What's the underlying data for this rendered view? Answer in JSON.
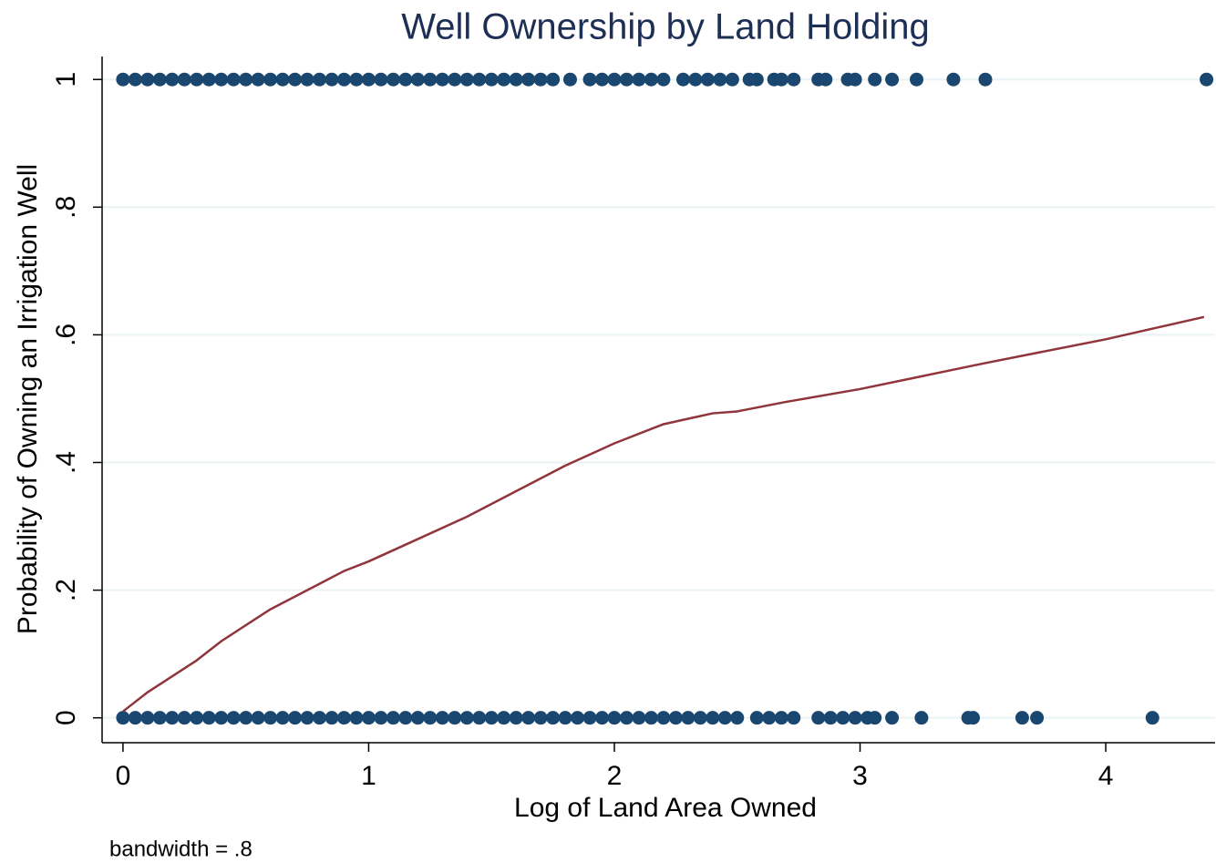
{
  "chart_data": {
    "type": "scatter",
    "title": "Well Ownership by Land Holding",
    "xlabel": "Log of Land Area Owned",
    "ylabel": "Probability of Owning an Irrigation Well",
    "note": "bandwidth = .8",
    "xlim": [
      -0.085,
      4.445
    ],
    "ylim": [
      -0.039,
      1.036
    ],
    "xticks": [
      0,
      1,
      2,
      3,
      4
    ],
    "yticks": [
      0,
      {
        "value": 0.2,
        "label": ".2"
      },
      {
        "value": 0.4,
        "label": ".4"
      },
      {
        "value": 0.6,
        "label": ".6"
      },
      {
        "value": 0.8,
        "label": ".8"
      },
      1
    ],
    "grid": true,
    "series": [
      {
        "type": "scatter",
        "color": "#1a476f",
        "x": [
          0,
          0.05,
          0.1,
          0.15,
          0.2,
          0.25,
          0.3,
          0.35,
          0.4,
          0.45,
          0.5,
          0.55,
          0.6,
          0.65,
          0.7,
          0.75,
          0.8,
          0.85,
          0.9,
          0.95,
          1,
          1.05,
          1.1,
          1.15,
          1.2,
          1.25,
          1.3,
          1.35,
          1.4,
          1.45,
          1.5,
          1.55,
          1.6,
          1.65,
          1.7,
          1.75,
          1.82,
          1.9,
          1.95,
          2.0,
          2.05,
          2.1,
          2.15,
          2.2,
          2.28,
          2.33,
          2.38,
          2.43,
          2.48,
          2.55,
          2.58,
          2.65,
          2.68,
          2.73,
          2.83,
          2.86,
          2.95,
          2.98,
          3.06,
          3.13,
          3.23,
          3.38,
          3.51,
          4.41
        ],
        "values": [
          1,
          1,
          1,
          1,
          1,
          1,
          1,
          1,
          1,
          1,
          1,
          1,
          1,
          1,
          1,
          1,
          1,
          1,
          1,
          1,
          1,
          1,
          1,
          1,
          1,
          1,
          1,
          1,
          1,
          1,
          1,
          1,
          1,
          1,
          1,
          1,
          1,
          1,
          1,
          1,
          1,
          1,
          1,
          1,
          1,
          1,
          1,
          1,
          1,
          1,
          1,
          1,
          1,
          1,
          1,
          1,
          1,
          1,
          1,
          1,
          1,
          1,
          1,
          1
        ]
      },
      {
        "type": "scatter",
        "color": "#1a476f",
        "x": [
          0,
          0.05,
          0.1,
          0.15,
          0.2,
          0.25,
          0.3,
          0.35,
          0.4,
          0.45,
          0.5,
          0.55,
          0.6,
          0.65,
          0.7,
          0.75,
          0.8,
          0.85,
          0.9,
          0.95,
          1,
          1.05,
          1.1,
          1.15,
          1.2,
          1.25,
          1.3,
          1.35,
          1.4,
          1.45,
          1.5,
          1.55,
          1.6,
          1.65,
          1.7,
          1.75,
          1.8,
          1.85,
          1.9,
          1.95,
          2,
          2.05,
          2.1,
          2.15,
          2.2,
          2.25,
          2.3,
          2.35,
          2.4,
          2.45,
          2.5,
          2.58,
          2.63,
          2.68,
          2.73,
          2.83,
          2.88,
          2.93,
          2.98,
          3.03,
          3.06,
          3.13,
          3.25,
          3.44,
          3.46,
          3.66,
          3.72,
          4.19
        ],
        "values": [
          0,
          0,
          0,
          0,
          0,
          0,
          0,
          0,
          0,
          0,
          0,
          0,
          0,
          0,
          0,
          0,
          0,
          0,
          0,
          0,
          0,
          0,
          0,
          0,
          0,
          0,
          0,
          0,
          0,
          0,
          0,
          0,
          0,
          0,
          0,
          0,
          0,
          0,
          0,
          0,
          0,
          0,
          0,
          0,
          0,
          0,
          0,
          0,
          0,
          0,
          0,
          0,
          0,
          0,
          0,
          0,
          0,
          0,
          0,
          0,
          0,
          0,
          0,
          0,
          0,
          0,
          0,
          0
        ]
      },
      {
        "type": "line",
        "color": "#90353b",
        "x": [
          0,
          0.1,
          0.2,
          0.3,
          0.4,
          0.5,
          0.6,
          0.7,
          0.8,
          0.9,
          1.0,
          1.2,
          1.4,
          1.6,
          1.8,
          2.0,
          2.2,
          2.4,
          2.5,
          2.7,
          3.0,
          3.5,
          4.0,
          4.4
        ],
        "values": [
          0.01,
          0.04,
          0.065,
          0.09,
          0.12,
          0.145,
          0.17,
          0.19,
          0.21,
          0.23,
          0.245,
          0.28,
          0.315,
          0.355,
          0.395,
          0.43,
          0.46,
          0.477,
          0.48,
          0.495,
          0.515,
          0.555,
          0.593,
          0.628
        ]
      }
    ]
  }
}
